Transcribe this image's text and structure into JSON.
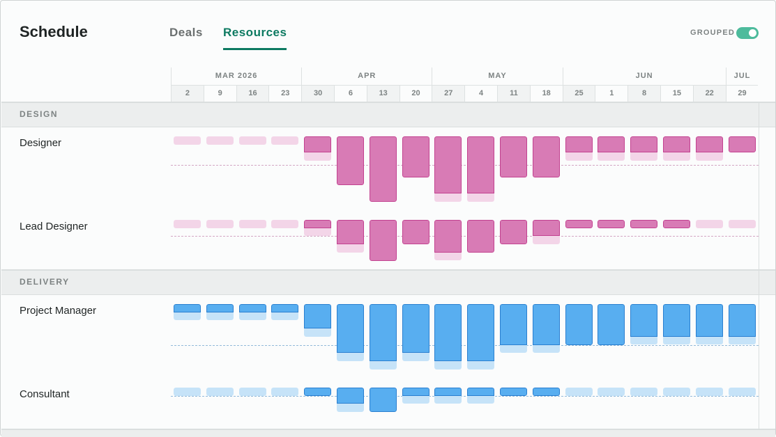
{
  "header": {
    "title": "Schedule",
    "tabs": [
      {
        "label": "Deals",
        "active": false
      },
      {
        "label": "Resources",
        "active": true
      }
    ],
    "grouped_label": "GROUPED",
    "grouped_on": true
  },
  "timeline": {
    "months": [
      {
        "label": "MAR 2026",
        "weeks": 4
      },
      {
        "label": "APR",
        "weeks": 4
      },
      {
        "label": "MAY",
        "weeks": 4
      },
      {
        "label": "JUN",
        "weeks": 5
      },
      {
        "label": "JUL",
        "weeks": 1
      }
    ],
    "weeks": [
      "2",
      "9",
      "16",
      "23",
      "30",
      "6",
      "13",
      "20",
      "27",
      "4",
      "11",
      "18",
      "25",
      "1",
      "8",
      "15",
      "22",
      "29"
    ]
  },
  "colors": {
    "pink_dark": "#d87bb5",
    "pink_border": "#c2418f",
    "pink_light": "#f3d5e8",
    "pink_dash": "#d3a6c3",
    "blue_dark": "#58aef0",
    "blue_border": "#2a7fd0",
    "blue_light": "#c6e3f8",
    "blue_dash": "#92b9da"
  },
  "groups": [
    {
      "label": "DESIGN",
      "color": "pink",
      "rows": [
        {
          "name": "Designer",
          "capacity": 3.5,
          "bars": [
            [
              0,
              1
            ],
            [
              0,
              1
            ],
            [
              0,
              1
            ],
            [
              0,
              1
            ],
            [
              2,
              1
            ],
            [
              6,
              0
            ],
            [
              8,
              0
            ],
            [
              5,
              0
            ],
            [
              7,
              1
            ],
            [
              7,
              1
            ],
            [
              5,
              0
            ],
            [
              5,
              0
            ],
            [
              2,
              1
            ],
            [
              2,
              1
            ],
            [
              2,
              1
            ],
            [
              2,
              1
            ],
            [
              2,
              1
            ],
            [
              2,
              0
            ]
          ]
        },
        {
          "name": "Lead Designer",
          "capacity": 2,
          "bars": [
            [
              0,
              1
            ],
            [
              0,
              1
            ],
            [
              0,
              1
            ],
            [
              0,
              1
            ],
            [
              1,
              1
            ],
            [
              3,
              1
            ],
            [
              5,
              0
            ],
            [
              3,
              0
            ],
            [
              4,
              1
            ],
            [
              4,
              0
            ],
            [
              3,
              0
            ],
            [
              2,
              1
            ],
            [
              1,
              0
            ],
            [
              1,
              0
            ],
            [
              1,
              0
            ],
            [
              1,
              0
            ],
            [
              0,
              1
            ],
            [
              0,
              1
            ]
          ]
        }
      ]
    },
    {
      "label": "DELIVERY",
      "color": "blue",
      "rows": [
        {
          "name": "Project Manager",
          "capacity": 5,
          "bars": [
            [
              1,
              1
            ],
            [
              1,
              1
            ],
            [
              1,
              1
            ],
            [
              1,
              1
            ],
            [
              3,
              1
            ],
            [
              6,
              1
            ],
            [
              7,
              1
            ],
            [
              6,
              1
            ],
            [
              7,
              1
            ],
            [
              7,
              1
            ],
            [
              5,
              1
            ],
            [
              5,
              1
            ],
            [
              5,
              0
            ],
            [
              5,
              0
            ],
            [
              4,
              1
            ],
            [
              4,
              1
            ],
            [
              4,
              1
            ],
            [
              4,
              1
            ]
          ]
        },
        {
          "name": "Consultant",
          "capacity": 1,
          "bars": [
            [
              0,
              1
            ],
            [
              0,
              1
            ],
            [
              0,
              1
            ],
            [
              0,
              1
            ],
            [
              1,
              0
            ],
            [
              2,
              1
            ],
            [
              3,
              0
            ],
            [
              1,
              1
            ],
            [
              1,
              1
            ],
            [
              1,
              1
            ],
            [
              1,
              0
            ],
            [
              1,
              0
            ],
            [
              0,
              1
            ],
            [
              0,
              1
            ],
            [
              0,
              1
            ],
            [
              0,
              1
            ],
            [
              0,
              1
            ],
            [
              0,
              1
            ]
          ]
        }
      ]
    }
  ]
}
